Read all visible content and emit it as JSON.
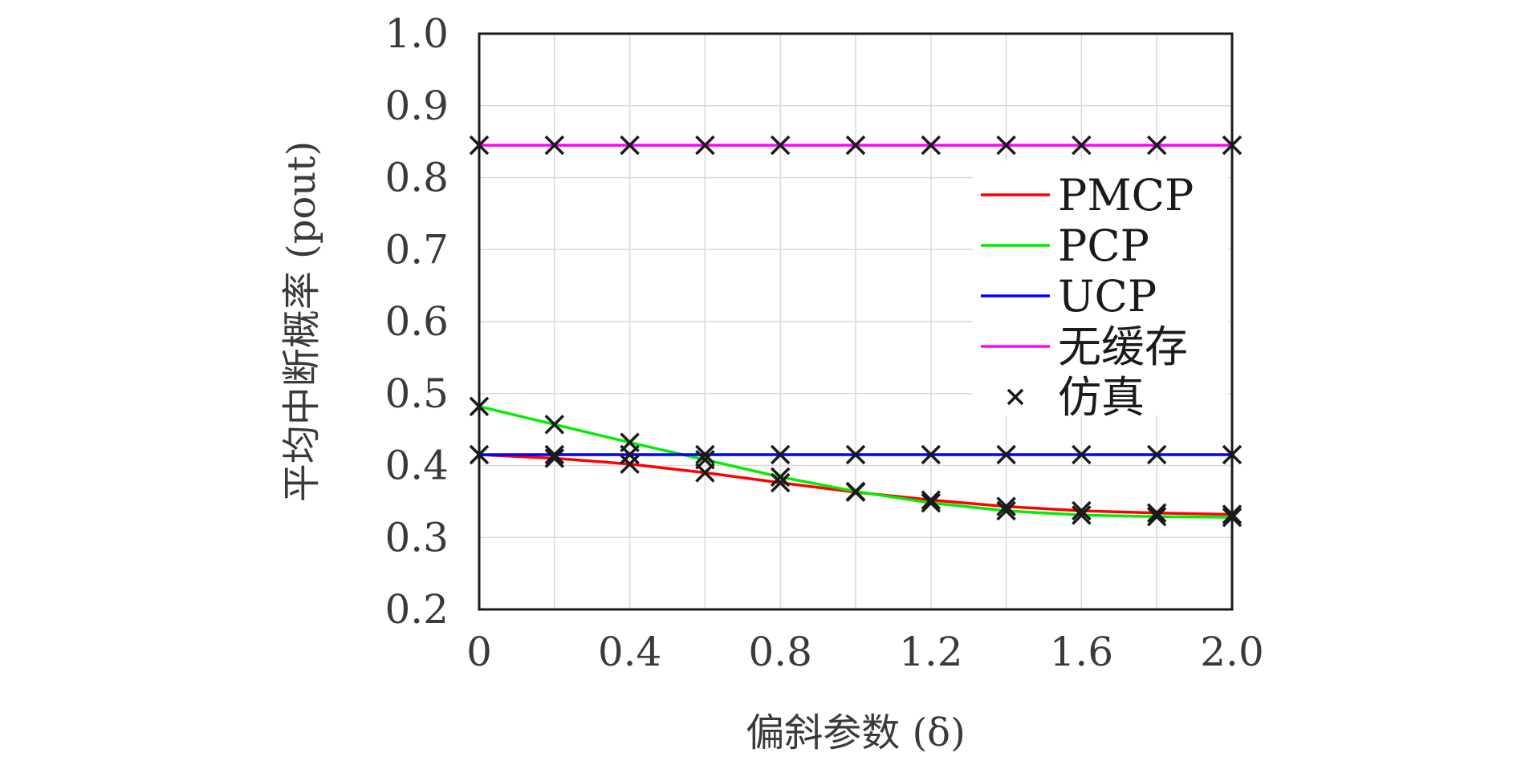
{
  "chart_data": {
    "type": "line",
    "title": "",
    "xlabel": "偏斜参数 (δ)",
    "ylabel": "平均中断概率 (pout)",
    "xlim": [
      0,
      2.0
    ],
    "ylim": [
      0.2,
      1.0
    ],
    "x_ticks": [
      0,
      0.4,
      0.8,
      1.2,
      1.6,
      2.0
    ],
    "x_tick_labels": [
      "0",
      "0.4",
      "0.8",
      "1.2",
      "1.6",
      "2.0"
    ],
    "y_ticks": [
      0.2,
      0.3,
      0.4,
      0.5,
      0.6,
      0.7,
      0.8,
      0.9,
      1.0
    ],
    "y_tick_labels": [
      "0.2",
      "0.3",
      "0.4",
      "0.5",
      "0.6",
      "0.7",
      "0.8",
      "0.9",
      "1.0"
    ],
    "grid": true,
    "legend_position": "right",
    "x": [
      0,
      0.2,
      0.4,
      0.6,
      0.8,
      1.0,
      1.2,
      1.4,
      1.6,
      1.8,
      2.0
    ],
    "series": [
      {
        "name": "PMCP",
        "color": "#ff0000",
        "values": [
          0.415,
          0.41,
          0.402,
          0.39,
          0.376,
          0.363,
          0.352,
          0.343,
          0.337,
          0.334,
          0.332
        ]
      },
      {
        "name": "PCP",
        "color": "#00ee00",
        "values": [
          0.482,
          0.457,
          0.432,
          0.408,
          0.384,
          0.364,
          0.348,
          0.337,
          0.331,
          0.329,
          0.328
        ]
      },
      {
        "name": "UCP",
        "color": "#0000ff",
        "values": [
          0.415,
          0.415,
          0.415,
          0.415,
          0.415,
          0.415,
          0.415,
          0.415,
          0.415,
          0.415,
          0.415
        ]
      },
      {
        "name": "无缓存",
        "color": "#ff00ff",
        "values": [
          0.845,
          0.845,
          0.845,
          0.845,
          0.845,
          0.845,
          0.845,
          0.845,
          0.845,
          0.845,
          0.845
        ]
      }
    ],
    "simulation": {
      "name": "仿真",
      "marker": "x",
      "color": "#1a1a1a",
      "points": [
        [
          0,
          0.845
        ],
        [
          0.2,
          0.845
        ],
        [
          0.4,
          0.845
        ],
        [
          0.6,
          0.845
        ],
        [
          0.8,
          0.845
        ],
        [
          1.0,
          0.845
        ],
        [
          1.2,
          0.845
        ],
        [
          1.4,
          0.845
        ],
        [
          1.6,
          0.845
        ],
        [
          1.8,
          0.845
        ],
        [
          2.0,
          0.845
        ],
        [
          0,
          0.415
        ],
        [
          0.2,
          0.415
        ],
        [
          0.4,
          0.415
        ],
        [
          0.6,
          0.415
        ],
        [
          0.8,
          0.415
        ],
        [
          1.0,
          0.415
        ],
        [
          1.2,
          0.415
        ],
        [
          1.4,
          0.415
        ],
        [
          1.6,
          0.415
        ],
        [
          1.8,
          0.415
        ],
        [
          2.0,
          0.415
        ],
        [
          0,
          0.482
        ],
        [
          0.2,
          0.457
        ],
        [
          0.4,
          0.432
        ],
        [
          0.6,
          0.408
        ],
        [
          0.8,
          0.384
        ],
        [
          1.0,
          0.364
        ],
        [
          1.2,
          0.348
        ],
        [
          1.4,
          0.337
        ],
        [
          1.6,
          0.331
        ],
        [
          1.8,
          0.329
        ],
        [
          2.0,
          0.328
        ],
        [
          0.2,
          0.41
        ],
        [
          0.4,
          0.402
        ],
        [
          0.6,
          0.39
        ],
        [
          0.8,
          0.376
        ],
        [
          1.0,
          0.363
        ],
        [
          1.2,
          0.352
        ],
        [
          1.4,
          0.343
        ],
        [
          1.6,
          0.337
        ],
        [
          1.8,
          0.334
        ],
        [
          2.0,
          0.332
        ]
      ]
    }
  }
}
